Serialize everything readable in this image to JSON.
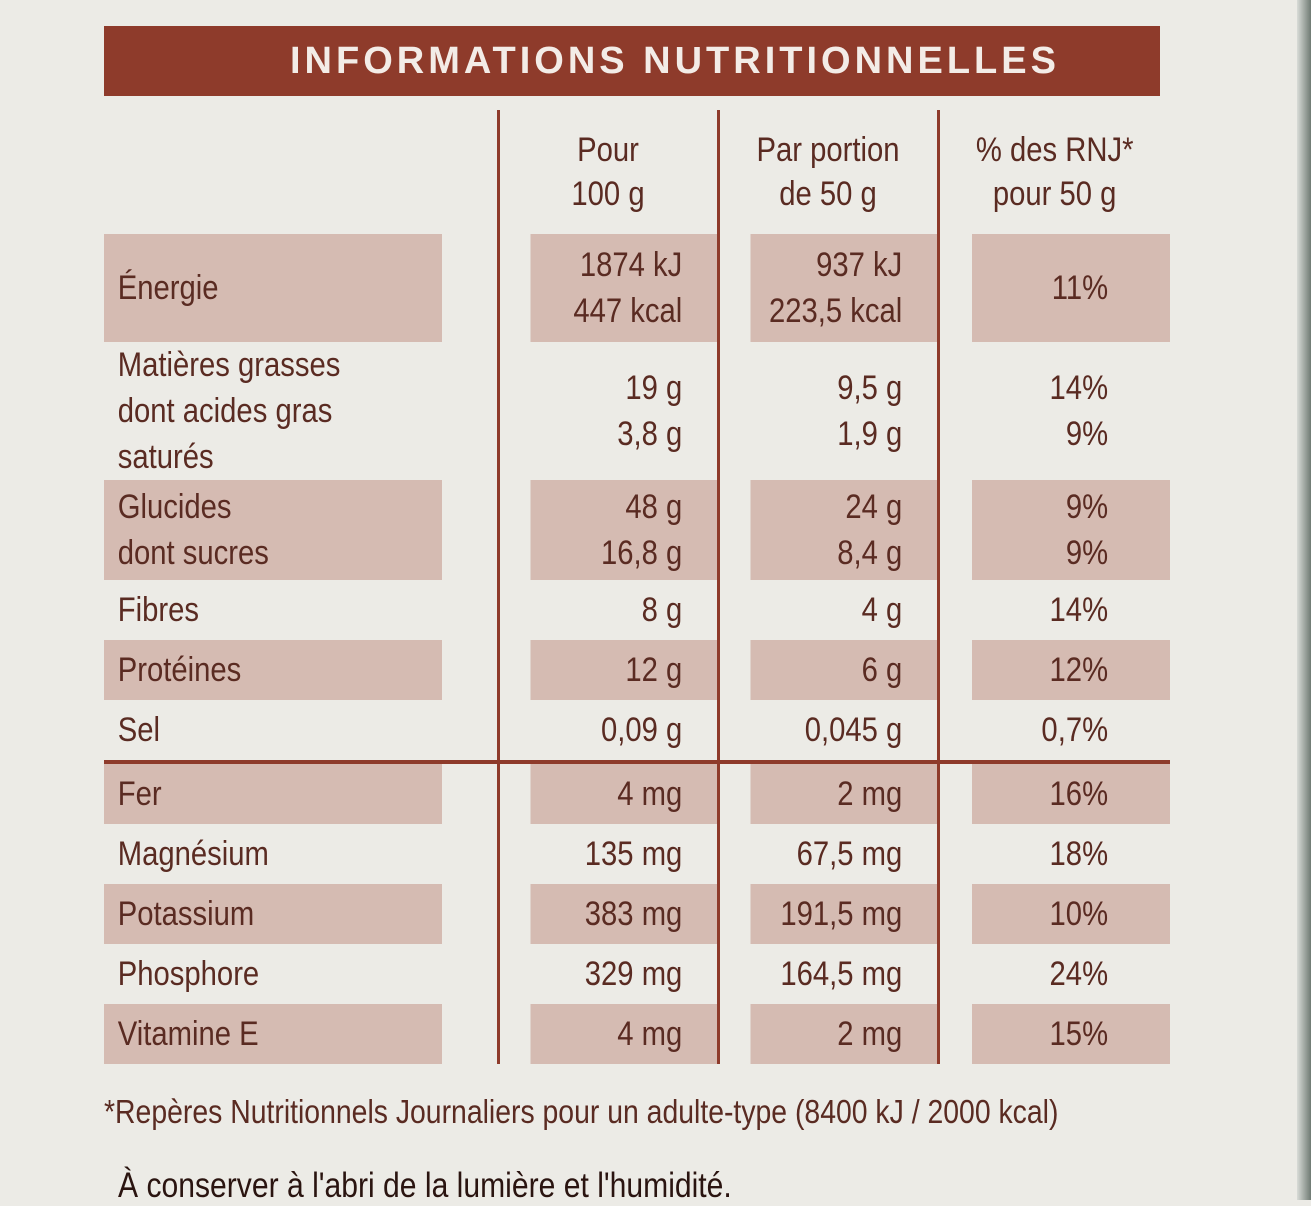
{
  "title": "INFORMATIONS NUTRITIONNELLES",
  "headers": {
    "col1": [
      "Pour",
      "100 g"
    ],
    "col2": [
      "Par portion",
      "de 50 g"
    ],
    "col3": [
      "% des RNJ*",
      "pour 50 g"
    ]
  },
  "rows": [
    {
      "name": [
        "Énergie"
      ],
      "per100": [
        "1874 kJ",
        "447 kcal"
      ],
      "portion": [
        "937 kJ",
        "223,5 kcal"
      ],
      "pct": [
        "11%"
      ]
    },
    {
      "name": [
        "Matières grasses",
        "dont acides gras saturés"
      ],
      "per100": [
        "19 g",
        "3,8 g"
      ],
      "portion": [
        "9,5 g",
        "1,9 g"
      ],
      "pct": [
        "14%",
        "9%"
      ]
    },
    {
      "name": [
        "Glucides",
        "dont sucres"
      ],
      "per100": [
        "48 g",
        "16,8 g"
      ],
      "portion": [
        "24 g",
        "8,4 g"
      ],
      "pct": [
        "9%",
        "9%"
      ]
    },
    {
      "name": [
        "Fibres"
      ],
      "per100": [
        "8 g"
      ],
      "portion": [
        "4 g"
      ],
      "pct": [
        "14%"
      ]
    },
    {
      "name": [
        "Protéines"
      ],
      "per100": [
        "12 g"
      ],
      "portion": [
        "6 g"
      ],
      "pct": [
        "12%"
      ]
    },
    {
      "name": [
        "Sel"
      ],
      "per100": [
        "0,09 g"
      ],
      "portion": [
        "0,045 g"
      ],
      "pct": [
        "0,7%"
      ]
    },
    {
      "name": [
        "Fer"
      ],
      "per100": [
        "4 mg"
      ],
      "portion": [
        "2 mg"
      ],
      "pct": [
        "16%"
      ]
    },
    {
      "name": [
        "Magnésium"
      ],
      "per100": [
        "135 mg"
      ],
      "portion": [
        "67,5 mg"
      ],
      "pct": [
        "18%"
      ]
    },
    {
      "name": [
        "Potassium"
      ],
      "per100": [
        "383 mg"
      ],
      "portion": [
        "191,5 mg"
      ],
      "pct": [
        "10%"
      ]
    },
    {
      "name": [
        "Phosphore"
      ],
      "per100": [
        "329 mg"
      ],
      "portion": [
        "164,5 mg"
      ],
      "pct": [
        "24%"
      ]
    },
    {
      "name": [
        "Vitamine E"
      ],
      "per100": [
        "4 mg"
      ],
      "portion": [
        "2 mg"
      ],
      "pct": [
        "15%"
      ]
    }
  ],
  "footnote": "*Repères Nutritionnels Journaliers pour un adulte-type (8400 kJ / 2000 kcal)",
  "storage": "À conserver à l'abri de la lumière et l'humidité.",
  "colors": {
    "brown": "#8e3b2b",
    "shade": "#d5bbb2",
    "background": "#ecebe6"
  }
}
